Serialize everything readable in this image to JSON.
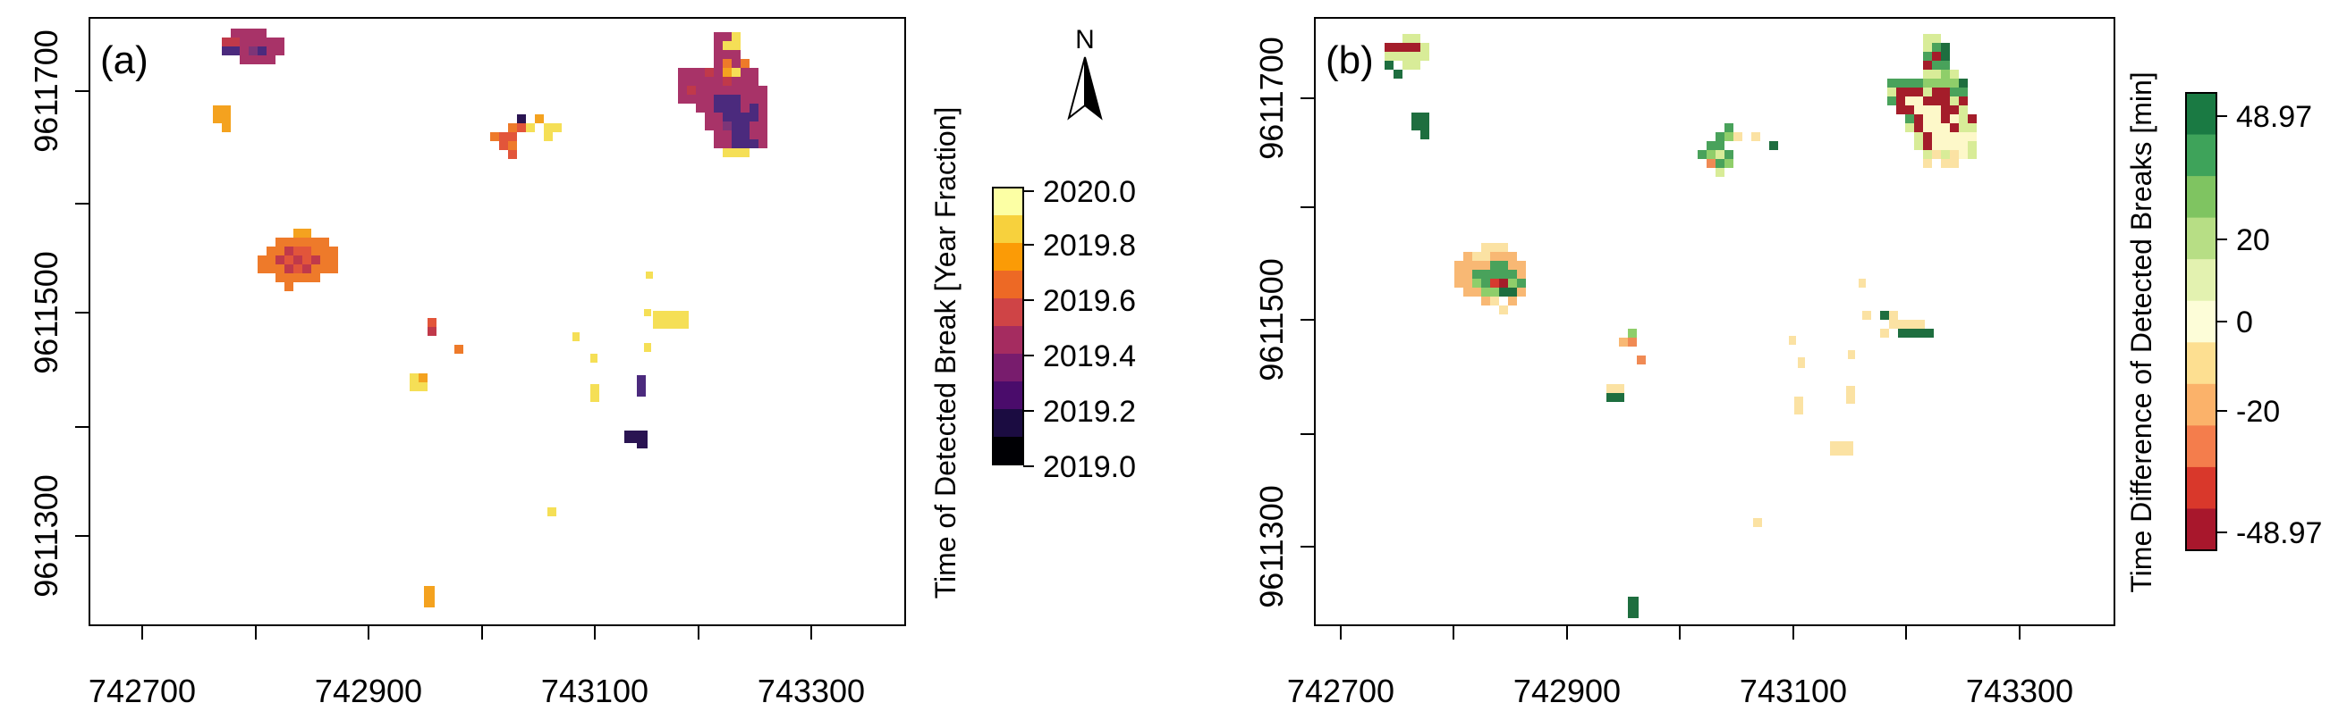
{
  "figure": {
    "panels": [
      {
        "id": "a",
        "label": "(a)",
        "x_ticks": [
          "742700",
          "742900",
          "743100",
          "743300"
        ],
        "y_ticks": [
          "9611700",
          "9611500",
          "9611300"
        ],
        "colorbar": {
          "title": "Time of Detected Break [Year Fraction]",
          "ticks": [
            "2020.0",
            "2019.8",
            "2019.6",
            "2019.4",
            "2019.2",
            "2019.0"
          ],
          "colors": [
            "#fcffa4",
            "#f7d13d",
            "#fb9b06",
            "#ed6925",
            "#cf4446",
            "#a52c60",
            "#781c6d",
            "#4a0c6b",
            "#1b0c41",
            "#000004"
          ]
        }
      },
      {
        "id": "b",
        "label": "(b)",
        "x_ticks": [
          "742700",
          "742900",
          "743100",
          "743300"
        ],
        "y_ticks": [
          "9611700",
          "9611500",
          "9611300"
        ],
        "colorbar": {
          "title": "Time Difference of Detected Breaks [min]",
          "ticks": [
            "48.97",
            "20",
            "0",
            "-20",
            "-48.97"
          ],
          "colors": [
            "#1a7a43",
            "#3ea35a",
            "#7fc461",
            "#b7de85",
            "#e3f2b0",
            "#fdfdd8",
            "#fddf91",
            "#fbb26a",
            "#f47d4c",
            "#d9382b",
            "#a8172c"
          ]
        }
      }
    ],
    "north_arrow": {
      "label": "N"
    }
  },
  "palette": {
    "y": "#f5df56",
    "o": "#f4a21f",
    "do": "#ee7a2a",
    "r": "#e2553a",
    "cr": "#c0394a",
    "m": "#a83368",
    "p": "#7d3578",
    "dp": "#4b2a7d",
    "dn": "#2a1452",
    "dg": "#1e6e3f",
    "g": "#49a25b",
    "lg": "#8fce6a",
    "yg": "#d8ec98",
    "cream": "#fdf8c9",
    "pe": "#fbe2a3",
    "lo": "#f8b874",
    "or": "#f08a54",
    "rr": "#d63a30",
    "br": "#a41d2a"
  }
}
